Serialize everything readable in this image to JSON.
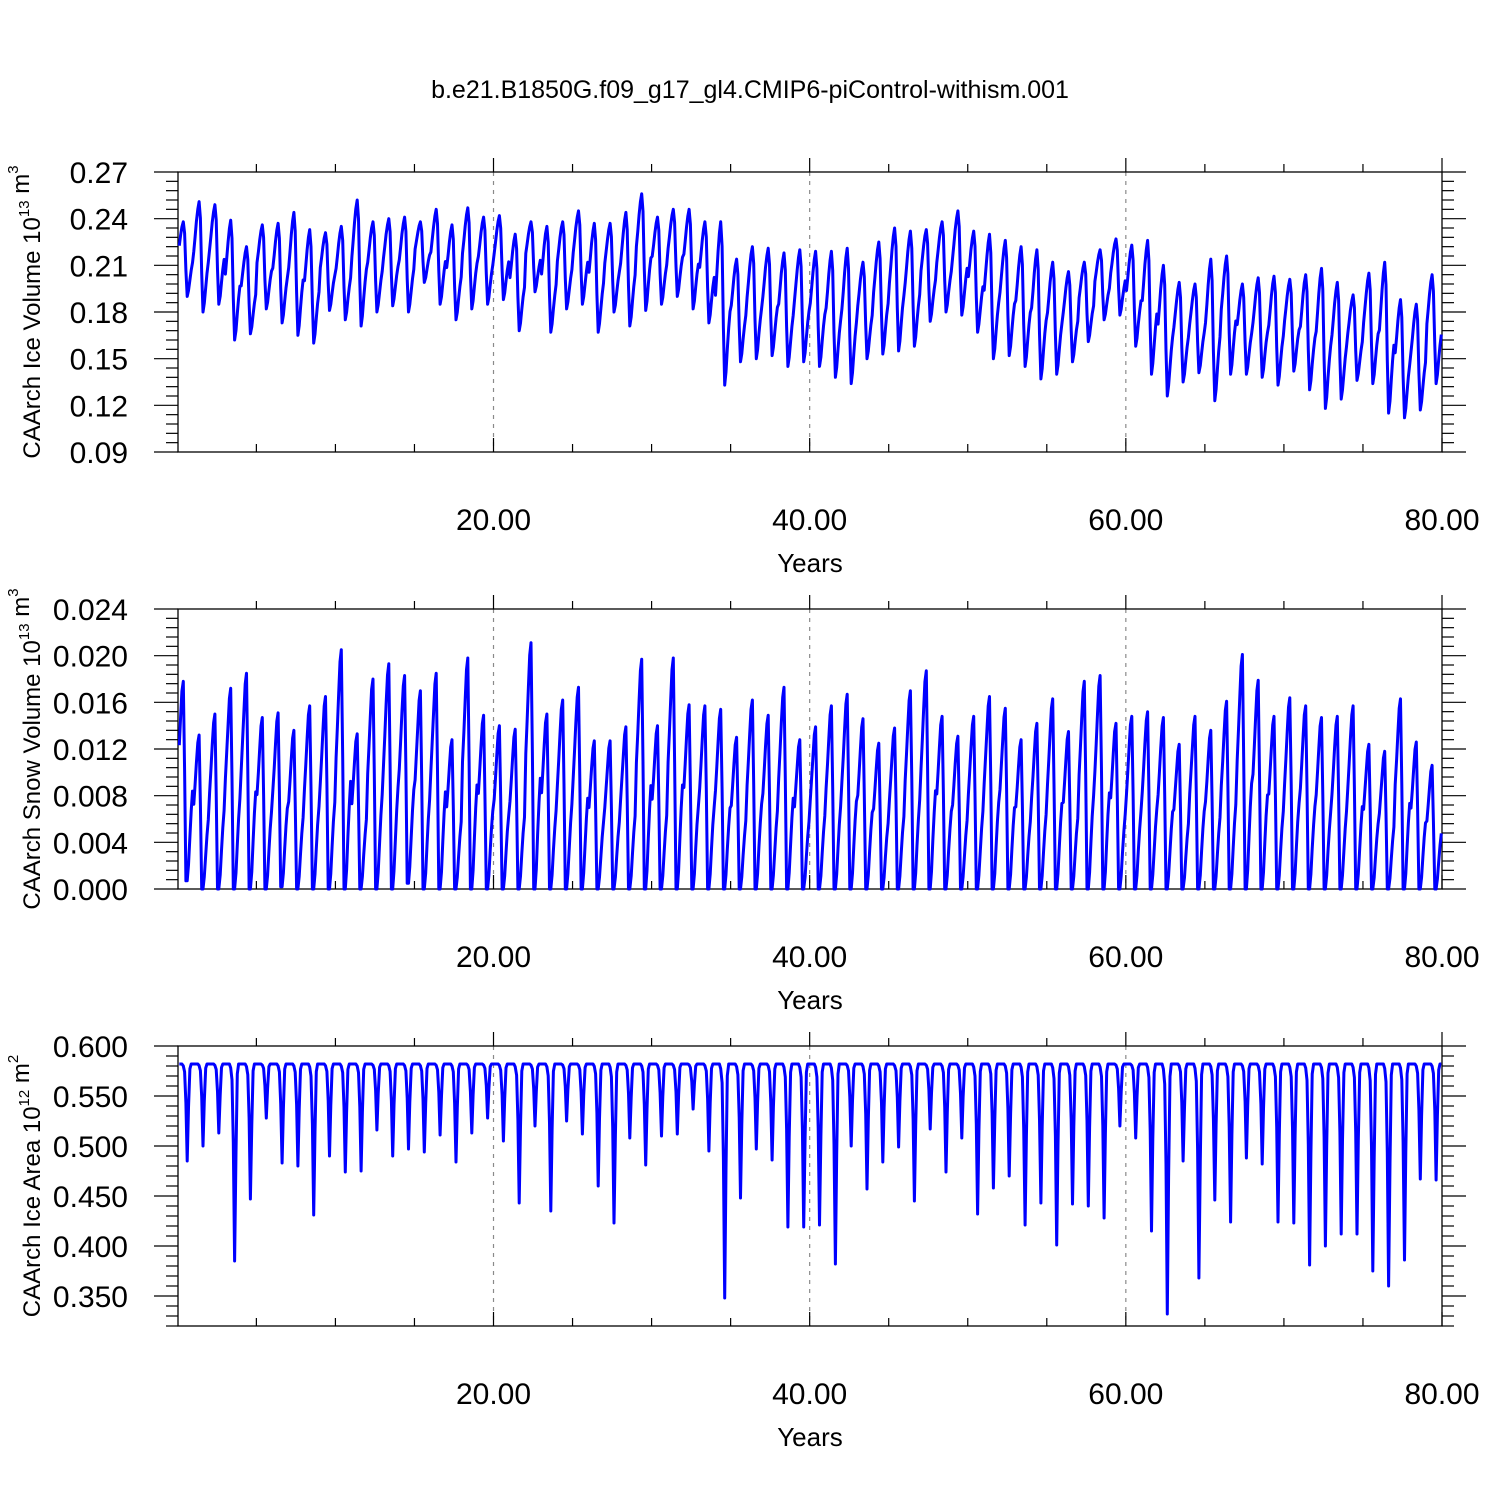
{
  "figure_title": "b.e21.B1850G.f09_g17_gl4.CMIP6-piControl-withism.001",
  "colors": {
    "line": "#0000ff",
    "grid": "#8a8a8a",
    "axes": "#000000"
  },
  "chart_data": [
    {
      "type": "line",
      "ylabel": {
        "main": "CAArch Ice Volume 10",
        "exp": "13",
        "unit": " m",
        "unit_exp": "3"
      },
      "xlabel": "Years",
      "xlim": [
        0.042,
        80.0
      ],
      "ylim": [
        0.09,
        0.27
      ],
      "xticks": [
        20,
        40,
        60,
        80
      ],
      "xtick_labels": [
        "20.00",
        "40.00",
        "60.00",
        "80.00"
      ],
      "yticks": [
        0.09,
        0.12,
        0.15,
        0.18,
        0.21,
        0.24,
        0.27
      ],
      "ytick_labels": [
        "0.09",
        "0.12",
        "0.15",
        "0.18",
        "0.21",
        "0.24",
        "0.27"
      ],
      "grid_x": [
        20,
        40,
        60
      ],
      "series": [
        {
          "annual_max": [
            0.238,
            0.251,
            0.249,
            0.239,
            0.222,
            0.236,
            0.237,
            0.244,
            0.233,
            0.231,
            0.235,
            0.252,
            0.238,
            0.24,
            0.241,
            0.238,
            0.246,
            0.236,
            0.247,
            0.241,
            0.242,
            0.23,
            0.238,
            0.235,
            0.238,
            0.245,
            0.237,
            0.237,
            0.244,
            0.256,
            0.241,
            0.246,
            0.246,
            0.238,
            0.238,
            0.214,
            0.222,
            0.221,
            0.218,
            0.22,
            0.219,
            0.219,
            0.221,
            0.212,
            0.225,
            0.234,
            0.232,
            0.233,
            0.238,
            0.245,
            0.232,
            0.23,
            0.226,
            0.222,
            0.22,
            0.212,
            0.206,
            0.212,
            0.22,
            0.227,
            0.223,
            0.226,
            0.21,
            0.199,
            0.198,
            0.214,
            0.216,
            0.198,
            0.202,
            0.203,
            0.201,
            0.204,
            0.208,
            0.199,
            0.191,
            0.205,
            0.212,
            0.188,
            0.185,
            0.204
          ],
          "annual_min": [
            0.19,
            0.18,
            0.185,
            0.162,
            0.166,
            0.182,
            0.173,
            0.165,
            0.16,
            0.181,
            0.175,
            0.171,
            0.18,
            0.184,
            0.18,
            0.199,
            0.185,
            0.175,
            0.182,
            0.185,
            0.188,
            0.168,
            0.193,
            0.167,
            0.182,
            0.185,
            0.167,
            0.18,
            0.171,
            0.181,
            0.185,
            0.19,
            0.182,
            0.173,
            0.133,
            0.148,
            0.15,
            0.152,
            0.145,
            0.148,
            0.145,
            0.138,
            0.134,
            0.15,
            0.153,
            0.155,
            0.158,
            0.174,
            0.18,
            0.178,
            0.167,
            0.15,
            0.152,
            0.145,
            0.137,
            0.14,
            0.148,
            0.161,
            0.175,
            0.178,
            0.158,
            0.14,
            0.126,
            0.135,
            0.141,
            0.123,
            0.14,
            0.14,
            0.138,
            0.133,
            0.142,
            0.13,
            0.118,
            0.124,
            0.136,
            0.134,
            0.115,
            0.112,
            0.117,
            0.134
          ]
        }
      ]
    },
    {
      "type": "line",
      "ylabel": {
        "main": "CAArch Snow Volume 10",
        "exp": "13",
        "unit": " m",
        "unit_exp": "3"
      },
      "xlabel": "Years",
      "xlim": [
        0.042,
        80.0
      ],
      "ylim": [
        0.0,
        0.024
      ],
      "xticks": [
        20,
        40,
        60,
        80
      ],
      "xtick_labels": [
        "20.00",
        "40.00",
        "60.00",
        "80.00"
      ],
      "yticks": [
        0.0,
        0.004,
        0.008,
        0.012,
        0.016,
        0.02,
        0.024
      ],
      "ytick_labels": [
        "0.000",
        "0.004",
        "0.008",
        "0.012",
        "0.016",
        "0.020",
        "0.024"
      ],
      "grid_x": [
        20,
        40,
        60
      ],
      "series": [
        {
          "annual_max": [
            0.0178,
            0.0132,
            0.015,
            0.0172,
            0.0185,
            0.0147,
            0.0151,
            0.0136,
            0.0157,
            0.0165,
            0.0205,
            0.0133,
            0.018,
            0.0193,
            0.0183,
            0.017,
            0.0185,
            0.0128,
            0.0198,
            0.0149,
            0.014,
            0.0137,
            0.0211,
            0.015,
            0.0162,
            0.0173,
            0.0127,
            0.0127,
            0.0139,
            0.0197,
            0.014,
            0.0198,
            0.0158,
            0.0157,
            0.0154,
            0.013,
            0.0162,
            0.0149,
            0.0173,
            0.0128,
            0.0139,
            0.0157,
            0.0167,
            0.0146,
            0.0125,
            0.0138,
            0.017,
            0.0187,
            0.0148,
            0.0131,
            0.0148,
            0.0165,
            0.0155,
            0.0128,
            0.0142,
            0.0163,
            0.0135,
            0.0178,
            0.0183,
            0.0142,
            0.0148,
            0.0152,
            0.0147,
            0.0124,
            0.0148,
            0.0136,
            0.0161,
            0.0201,
            0.0179,
            0.0148,
            0.0164,
            0.0157,
            0.0147,
            0.0148,
            0.0157,
            0.0124,
            0.0118,
            0.0163,
            0.0126,
            0.0106
          ],
          "annual_min": [
            0.0007,
            0.0,
            0.0,
            0.0,
            0.0,
            0.0,
            0.0002,
            0.0,
            0.0,
            0.0,
            0.0,
            0.0,
            0.0,
            0.0,
            0.0005,
            0.0,
            0.0,
            0.0,
            0.0,
            0.0,
            0.0,
            0.0,
            0.0,
            0.0,
            0.0,
            0.0,
            0.0,
            0.0,
            0.0,
            0.0,
            0.0,
            0.0,
            0.0,
            0.0,
            0.0,
            0.0,
            0.0,
            0.0,
            0.0,
            0.0,
            0.0,
            0.0,
            0.0,
            0.0,
            0.0,
            0.0,
            0.0,
            0.0,
            0.0,
            0.0,
            0.0,
            0.0,
            0.0,
            0.0,
            0.0,
            0.0,
            0.0,
            0.0,
            0.0,
            0.0,
            0.0,
            0.0,
            0.0,
            0.0,
            0.0,
            0.0,
            0.0,
            0.0,
            0.0,
            0.0,
            0.0,
            0.0,
            0.0,
            0.0,
            0.0,
            0.0,
            0.0,
            0.0,
            0.0,
            0.0
          ]
        }
      ]
    },
    {
      "type": "line",
      "ylabel": {
        "main": "CAArch Ice Area 10",
        "exp": "12",
        "unit": " m",
        "unit_exp": "2"
      },
      "xlabel": "Years",
      "xlim": [
        0.042,
        80.0
      ],
      "ylim": [
        0.32,
        0.6
      ],
      "xticks": [
        20,
        40,
        60,
        80
      ],
      "xtick_labels": [
        "20.00",
        "40.00",
        "60.00",
        "80.00"
      ],
      "yticks": [
        0.35,
        0.4,
        0.45,
        0.5,
        0.55,
        0.6
      ],
      "ytick_labels": [
        "0.350",
        "0.400",
        "0.450",
        "0.500",
        "0.550",
        "0.600"
      ],
      "grid_x": [
        20,
        40,
        60
      ],
      "series": [
        {
          "plateau": 0.582,
          "annual_min": [
            0.485,
            0.5,
            0.513,
            0.385,
            0.447,
            0.528,
            0.483,
            0.48,
            0.431,
            0.49,
            0.474,
            0.475,
            0.516,
            0.49,
            0.497,
            0.494,
            0.511,
            0.484,
            0.513,
            0.528,
            0.505,
            0.443,
            0.52,
            0.435,
            0.525,
            0.512,
            0.46,
            0.423,
            0.508,
            0.481,
            0.51,
            0.512,
            0.537,
            0.495,
            0.348,
            0.448,
            0.497,
            0.486,
            0.419,
            0.419,
            0.421,
            0.382,
            0.5,
            0.457,
            0.484,
            0.499,
            0.445,
            0.517,
            0.474,
            0.508,
            0.432,
            0.458,
            0.47,
            0.421,
            0.443,
            0.401,
            0.442,
            0.44,
            0.428,
            0.52,
            0.508,
            0.415,
            0.332,
            0.485,
            0.368,
            0.446,
            0.424,
            0.488,
            0.482,
            0.424,
            0.423,
            0.381,
            0.4,
            0.412,
            0.412,
            0.375,
            0.36,
            0.386,
            0.467,
            0.466
          ]
        }
      ]
    }
  ]
}
